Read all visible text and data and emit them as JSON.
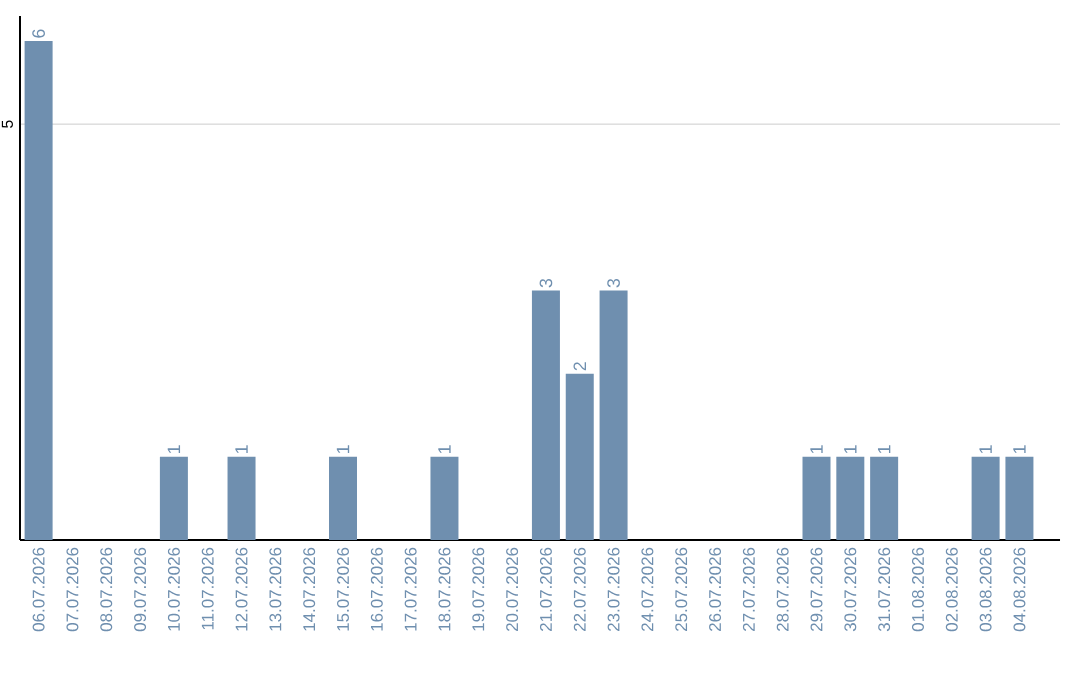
{
  "chart_data": {
    "type": "bar",
    "categories": [
      "06.07.2026",
      "07.07.2026",
      "08.07.2026",
      "09.07.2026",
      "10.07.2026",
      "11.07.2026",
      "12.07.2026",
      "13.07.2026",
      "14.07.2026",
      "15.07.2026",
      "16.07.2026",
      "17.07.2026",
      "18.07.2026",
      "19.07.2026",
      "20.07.2026",
      "21.07.2026",
      "22.07.2026",
      "23.07.2026",
      "24.07.2026",
      "25.07.2026",
      "26.07.2026",
      "27.07.2026",
      "28.07.2026",
      "29.07.2026",
      "30.07.2026",
      "31.07.2026",
      "01.08.2026",
      "02.08.2026",
      "03.08.2026",
      "04.08.2026"
    ],
    "values": [
      6,
      0,
      0,
      0,
      1,
      0,
      1,
      0,
      0,
      1,
      0,
      0,
      1,
      0,
      0,
      3,
      2,
      3,
      0,
      0,
      0,
      0,
      0,
      1,
      1,
      1,
      0,
      0,
      1,
      1
    ],
    "value_labels": [
      "6",
      null,
      null,
      null,
      "1",
      null,
      "1",
      null,
      null,
      "1",
      null,
      null,
      "1",
      null,
      null,
      "3",
      "2",
      "3",
      null,
      null,
      null,
      null,
      null,
      "1",
      "1",
      "1",
      null,
      null,
      "1",
      "1"
    ],
    "color": "#6f8faf",
    "ylim": [
      0,
      6.3
    ],
    "yticks": [
      5
    ],
    "grid": "y"
  }
}
